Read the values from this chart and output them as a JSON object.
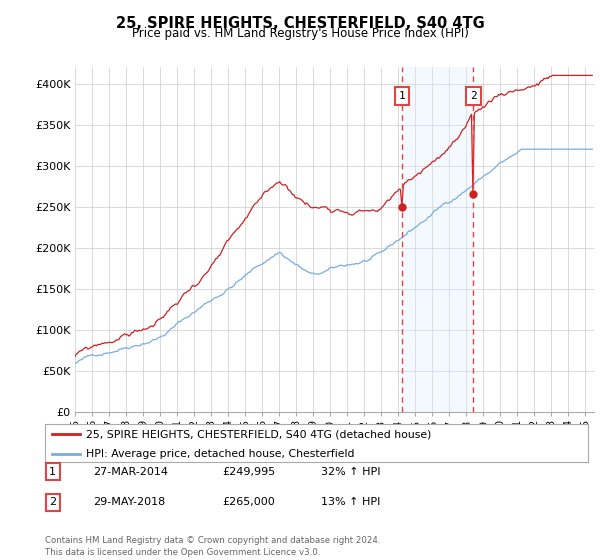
{
  "title": "25, SPIRE HEIGHTS, CHESTERFIELD, S40 4TG",
  "subtitle": "Price paid vs. HM Land Registry's House Price Index (HPI)",
  "ylabel_ticks": [
    "£0",
    "£50K",
    "£100K",
    "£150K",
    "£200K",
    "£250K",
    "£300K",
    "£350K",
    "£400K"
  ],
  "ytick_values": [
    0,
    50000,
    100000,
    150000,
    200000,
    250000,
    300000,
    350000,
    400000
  ],
  "ylim": [
    0,
    420000
  ],
  "xlim_start": 1995.0,
  "xlim_end": 2025.5,
  "line1_color": "#cc2222",
  "line2_color": "#7aace0",
  "fill_color": "#ddeeff",
  "vline_color": "#dd4444",
  "marker1_x": 2014.23,
  "marker1_y": 249995,
  "marker2_x": 2018.41,
  "marker2_y": 265000,
  "shade_x1": 2014.23,
  "shade_x2": 2018.41,
  "legend_line1": "25, SPIRE HEIGHTS, CHESTERFIELD, S40 4TG (detached house)",
  "legend_line2": "HPI: Average price, detached house, Chesterfield",
  "table_rows": [
    {
      "num": "1",
      "date": "27-MAR-2014",
      "price": "£249,995",
      "pct": "32% ↑ HPI"
    },
    {
      "num": "2",
      "date": "29-MAY-2018",
      "price": "£265,000",
      "pct": "13% ↑ HPI"
    }
  ],
  "footer": "Contains HM Land Registry data © Crown copyright and database right 2024.\nThis data is licensed under the Open Government Licence v3.0.",
  "bg_color": "#ffffff",
  "grid_color": "#cccccc",
  "title_fontsize": 10.5,
  "subtitle_fontsize": 8.5
}
